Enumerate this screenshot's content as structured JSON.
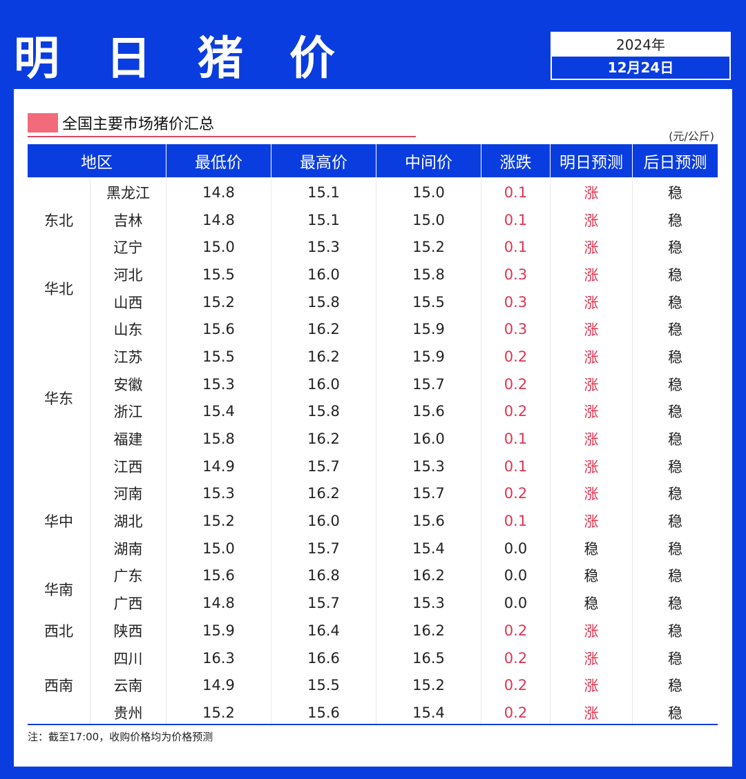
{
  "header": {
    "title": "明 日 猪 价",
    "year": "2024年",
    "date": "12月24日"
  },
  "summary": {
    "heading": "全国主要市场猪价汇总",
    "unit": "(元/公斤)"
  },
  "table": {
    "columns": [
      "地区",
      "最低价",
      "最高价",
      "中间价",
      "涨跌",
      "明日预测",
      "后日预测"
    ],
    "regions": [
      {
        "name": "东北",
        "rows": 3
      },
      {
        "name": "华北",
        "rows": 2
      },
      {
        "name": "华东",
        "rows": 6
      },
      {
        "name": "华中",
        "rows": 3
      },
      {
        "name": "华南",
        "rows": 2
      },
      {
        "name": "西北",
        "rows": 1
      },
      {
        "name": "西南",
        "rows": 3
      }
    ],
    "rows": [
      {
        "province": "黑龙江",
        "low": "14.8",
        "high": "15.1",
        "mid": "15.0",
        "change": "0.1",
        "tomorrow": "涨",
        "after": "稳"
      },
      {
        "province": "吉林",
        "low": "14.8",
        "high": "15.1",
        "mid": "15.0",
        "change": "0.1",
        "tomorrow": "涨",
        "after": "稳"
      },
      {
        "province": "辽宁",
        "low": "15.0",
        "high": "15.3",
        "mid": "15.2",
        "change": "0.1",
        "tomorrow": "涨",
        "after": "稳"
      },
      {
        "province": "河北",
        "low": "15.5",
        "high": "16.0",
        "mid": "15.8",
        "change": "0.3",
        "tomorrow": "涨",
        "after": "稳"
      },
      {
        "province": "山西",
        "low": "15.2",
        "high": "15.8",
        "mid": "15.5",
        "change": "0.3",
        "tomorrow": "涨",
        "after": "稳"
      },
      {
        "province": "山东",
        "low": "15.6",
        "high": "16.2",
        "mid": "15.9",
        "change": "0.3",
        "tomorrow": "涨",
        "after": "稳"
      },
      {
        "province": "江苏",
        "low": "15.5",
        "high": "16.2",
        "mid": "15.9",
        "change": "0.2",
        "tomorrow": "涨",
        "after": "稳"
      },
      {
        "province": "安徽",
        "low": "15.3",
        "high": "16.0",
        "mid": "15.7",
        "change": "0.2",
        "tomorrow": "涨",
        "after": "稳"
      },
      {
        "province": "浙江",
        "low": "15.4",
        "high": "15.8",
        "mid": "15.6",
        "change": "0.2",
        "tomorrow": "涨",
        "after": "稳"
      },
      {
        "province": "福建",
        "low": "15.8",
        "high": "16.2",
        "mid": "16.0",
        "change": "0.1",
        "tomorrow": "涨",
        "after": "稳"
      },
      {
        "province": "江西",
        "low": "14.9",
        "high": "15.7",
        "mid": "15.3",
        "change": "0.1",
        "tomorrow": "涨",
        "after": "稳"
      },
      {
        "province": "河南",
        "low": "15.3",
        "high": "16.2",
        "mid": "15.7",
        "change": "0.2",
        "tomorrow": "涨",
        "after": "稳"
      },
      {
        "province": "湖北",
        "low": "15.2",
        "high": "16.0",
        "mid": "15.6",
        "change": "0.1",
        "tomorrow": "涨",
        "after": "稳"
      },
      {
        "province": "湖南",
        "low": "15.0",
        "high": "15.7",
        "mid": "15.4",
        "change": "0.0",
        "tomorrow": "稳",
        "after": "稳"
      },
      {
        "province": "广东",
        "low": "15.6",
        "high": "16.8",
        "mid": "16.2",
        "change": "0.0",
        "tomorrow": "稳",
        "after": "稳"
      },
      {
        "province": "广西",
        "low": "14.8",
        "high": "15.7",
        "mid": "15.3",
        "change": "0.0",
        "tomorrow": "稳",
        "after": "稳"
      },
      {
        "province": "陕西",
        "low": "15.9",
        "high": "16.4",
        "mid": "16.2",
        "change": "0.2",
        "tomorrow": "涨",
        "after": "稳"
      },
      {
        "province": "四川",
        "low": "16.3",
        "high": "16.6",
        "mid": "16.5",
        "change": "0.2",
        "tomorrow": "涨",
        "after": "稳"
      },
      {
        "province": "云南",
        "low": "14.9",
        "high": "15.5",
        "mid": "15.2",
        "change": "0.2",
        "tomorrow": "涨",
        "after": "稳"
      },
      {
        "province": "贵州",
        "low": "15.2",
        "high": "15.6",
        "mid": "15.4",
        "change": "0.2",
        "tomorrow": "涨",
        "after": "稳"
      }
    ]
  },
  "note": "注：截至17:00，收购价格均为价格预测",
  "colors": {
    "brand_blue": "#0a3de0",
    "up_red": "#e0334f",
    "accent_pink": "#f26b7a"
  }
}
